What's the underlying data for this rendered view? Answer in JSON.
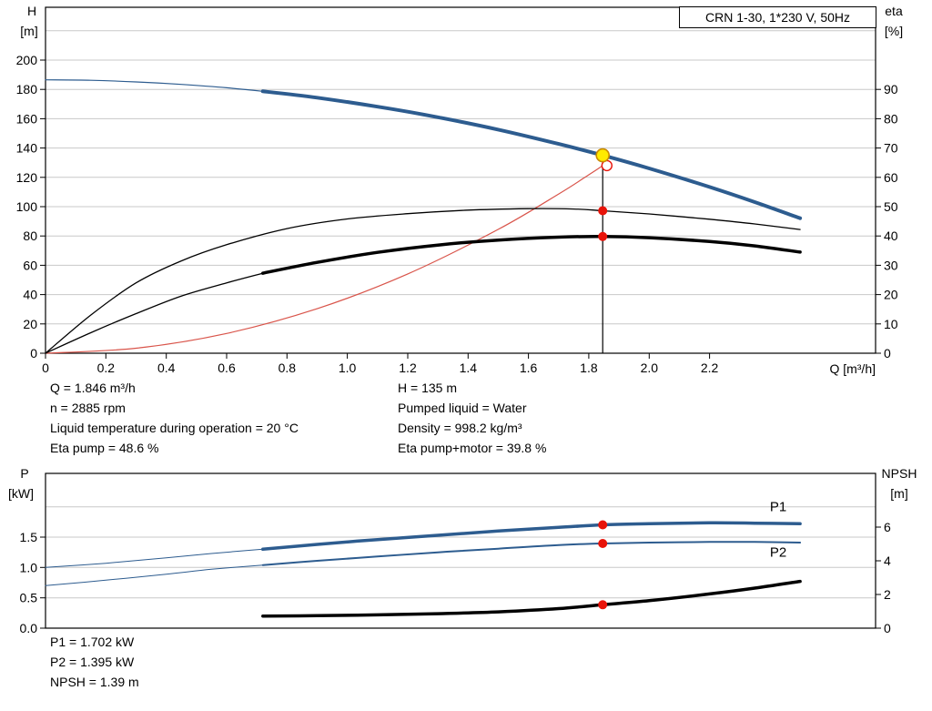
{
  "title_box": "CRN 1-30, 1*230 V, 50Hz",
  "colors": {
    "curve_blue": "#2d5c8f",
    "curve_black": "#000000",
    "curve_red": "#d9544a",
    "label_blue": "#2d5c8f",
    "marker_red": "#e81309",
    "marker_yellow_fill": "#ffeb00",
    "marker_yellow_ring": "#c98a00",
    "grid": "#c8c8c8",
    "axis": "#000000"
  },
  "readouts": {
    "left_column": [
      "Q = 1.846 m³/h",
      "n = 2885 rpm",
      "Liquid temperature during operation = 20 °C",
      "Eta pump = 48.6 %"
    ],
    "right_column": [
      "H = 135 m",
      "Pumped liquid = Water",
      "Density = 998.2 kg/m³",
      "Eta pump+motor = 39.8 %"
    ],
    "power_block": [
      "P1 = 1.702 kW",
      "P2 = 1.395 kW",
      "NPSH = 1.39 m"
    ]
  },
  "chart_data": [
    {
      "type": "line",
      "title": "CRN 1-30, 1*230 V, 50Hz",
      "x_axis": {
        "label": "Q [m³/h]",
        "min": 0,
        "max": 2.75,
        "tick_values": [
          0,
          0.2,
          0.4,
          0.6,
          0.8,
          1.0,
          1.2,
          1.4,
          1.6,
          1.8,
          2.0,
          2.2
        ],
        "tick_labels": [
          "0",
          "0.2",
          "0.4",
          "0.6",
          "0.8",
          "1.0",
          "1.2",
          "1.4",
          "1.6",
          "1.8",
          "2.0",
          "2.2"
        ]
      },
      "y_left": {
        "name": "H",
        "unit": "[m]",
        "min": 0,
        "max": 236,
        "tick_values": [
          0,
          20,
          40,
          60,
          80,
          100,
          120,
          140,
          160,
          180,
          200
        ],
        "tick_labels": [
          "0",
          "20",
          "40",
          "60",
          "80",
          "100",
          "120",
          "140",
          "160",
          "180",
          "200"
        ]
      },
      "y_right": {
        "name": "eta",
        "unit": "[%]",
        "min": 0,
        "max": 118,
        "tick_values": [
          0,
          10,
          20,
          30,
          40,
          50,
          60,
          70,
          80,
          90
        ],
        "tick_labels": [
          "0",
          "10",
          "20",
          "30",
          "40",
          "50",
          "60",
          "70",
          "80",
          "90"
        ]
      },
      "grid_values": [
        20,
        40,
        60,
        80,
        100,
        120,
        140,
        160,
        180,
        200,
        220
      ],
      "series": [
        {
          "name": "head-curve-lead",
          "axis": "left",
          "color": "curve_blue",
          "width": 1.2,
          "points": [
            [
              0,
              186.5
            ],
            [
              0.15,
              186.2
            ],
            [
              0.3,
              185.1
            ],
            [
              0.45,
              183.4
            ],
            [
              0.6,
              181.1
            ],
            [
              0.72,
              178.7
            ]
          ]
        },
        {
          "name": "head-curve",
          "axis": "left",
          "color": "curve_blue",
          "width": 4,
          "points": [
            [
              0.72,
              178.7
            ],
            [
              0.9,
              174.3
            ],
            [
              1.1,
              168.2
            ],
            [
              1.3,
              161.0
            ],
            [
              1.5,
              152.5
            ],
            [
              1.7,
              142.8
            ],
            [
              1.846,
              135.0
            ],
            [
              2.0,
              126.1
            ],
            [
              2.2,
              113.4
            ],
            [
              2.35,
              103.1
            ],
            [
              2.5,
              92.1
            ]
          ]
        },
        {
          "name": "system-curve",
          "axis": "left",
          "color": "curve_red",
          "width": 1.2,
          "points": [
            [
              0,
              0
            ],
            [
              0.3,
              3.4
            ],
            [
              0.6,
              13.5
            ],
            [
              0.9,
              30.4
            ],
            [
              1.2,
              54.1
            ],
            [
              1.5,
              84.5
            ],
            [
              1.7,
              108.6
            ],
            [
              1.8,
              121.7
            ],
            [
              1.846,
              128.0
            ]
          ]
        },
        {
          "name": "eta-pump-curve",
          "axis": "right",
          "color": "curve_black",
          "width": 1.3,
          "points": [
            [
              0,
              0
            ],
            [
              0.15,
              13
            ],
            [
              0.3,
              24
            ],
            [
              0.45,
              31.5
            ],
            [
              0.6,
              37
            ],
            [
              0.8,
              42.5
            ],
            [
              1.0,
              45.8
            ],
            [
              1.2,
              47.6
            ],
            [
              1.4,
              48.8
            ],
            [
              1.6,
              49.3
            ],
            [
              1.75,
              49.2
            ],
            [
              1.846,
              48.6
            ],
            [
              2.0,
              47.5
            ],
            [
              2.2,
              45.7
            ],
            [
              2.35,
              44.1
            ],
            [
              2.5,
              42.2
            ]
          ]
        },
        {
          "name": "eta-pump-motor-lead",
          "axis": "right",
          "color": "curve_black",
          "width": 1.3,
          "points": [
            [
              0,
              0
            ],
            [
              0.15,
              7
            ],
            [
              0.3,
              13.5
            ],
            [
              0.45,
              19.5
            ],
            [
              0.6,
              24
            ],
            [
              0.72,
              27.3
            ]
          ]
        },
        {
          "name": "eta-pump-motor-curve",
          "axis": "right",
          "color": "curve_black",
          "width": 3.5,
          "points": [
            [
              0.72,
              27.3
            ],
            [
              0.9,
              31
            ],
            [
              1.1,
              34.4
            ],
            [
              1.3,
              36.9
            ],
            [
              1.5,
              38.6
            ],
            [
              1.7,
              39.6
            ],
            [
              1.846,
              39.8
            ],
            [
              2.0,
              39.4
            ],
            [
              2.2,
              38.1
            ],
            [
              2.35,
              36.6
            ],
            [
              2.5,
              34.5
            ]
          ]
        }
      ],
      "duty_line": {
        "q": 1.846,
        "axis": "left",
        "v_from": 0,
        "v_to": 135
      },
      "curve_labels": [],
      "markers": [
        {
          "q": 1.86,
          "v": 128,
          "axis": "left",
          "kind": "red-open"
        },
        {
          "q": 1.846,
          "v": 48.6,
          "axis": "right",
          "kind": "red-dot"
        },
        {
          "q": 1.846,
          "v": 39.8,
          "axis": "right",
          "kind": "red-dot"
        },
        {
          "q": 1.846,
          "v": 135,
          "axis": "left",
          "kind": "yellow-dot"
        }
      ]
    },
    {
      "type": "line",
      "title": "",
      "x_axis": {
        "label": "",
        "min": 0,
        "max": 2.75,
        "tick_values": [],
        "tick_labels": []
      },
      "y_left": {
        "name": "P",
        "unit": "[kW]",
        "min": 0,
        "max": 2.55,
        "tick_values": [
          0,
          0.5,
          1.0,
          1.5
        ],
        "tick_labels": [
          "0.0",
          "0.5",
          "1.0",
          "1.5"
        ]
      },
      "y_right": {
        "name": "NPSH",
        "unit": "[m]",
        "min": 0,
        "max": 9.19,
        "tick_values": [
          0,
          2,
          4,
          6
        ],
        "tick_labels": [
          "0",
          "2",
          "4",
          "6"
        ]
      },
      "grid_values": [
        0.5,
        1.0,
        1.5,
        2.0
      ],
      "series": [
        {
          "name": "p1-curve-lead",
          "axis": "left",
          "color": "curve_blue",
          "width": 1,
          "points": [
            [
              0,
              1.0
            ],
            [
              0.2,
              1.07
            ],
            [
              0.4,
              1.16
            ],
            [
              0.55,
              1.23
            ],
            [
              0.72,
              1.3
            ]
          ]
        },
        {
          "name": "p1-curve",
          "axis": "left",
          "color": "curve_blue",
          "width": 3.5,
          "points": [
            [
              0.72,
              1.3
            ],
            [
              0.9,
              1.38
            ],
            [
              1.1,
              1.46
            ],
            [
              1.3,
              1.53
            ],
            [
              1.5,
              1.6
            ],
            [
              1.7,
              1.66
            ],
            [
              1.846,
              1.702
            ],
            [
              2.0,
              1.72
            ],
            [
              2.2,
              1.735
            ],
            [
              2.35,
              1.73
            ],
            [
              2.5,
              1.72
            ]
          ]
        },
        {
          "name": "p2-curve-lead",
          "axis": "left",
          "color": "curve_blue",
          "width": 1,
          "points": [
            [
              0,
              0.7
            ],
            [
              0.2,
              0.79
            ],
            [
              0.4,
              0.89
            ],
            [
              0.55,
              0.97
            ],
            [
              0.72,
              1.04
            ]
          ]
        },
        {
          "name": "p2-curve",
          "axis": "left",
          "color": "curve_blue",
          "width": 2,
          "points": [
            [
              0.72,
              1.04
            ],
            [
              0.9,
              1.11
            ],
            [
              1.1,
              1.18
            ],
            [
              1.3,
              1.25
            ],
            [
              1.5,
              1.31
            ],
            [
              1.7,
              1.37
            ],
            [
              1.846,
              1.395
            ],
            [
              2.0,
              1.41
            ],
            [
              2.2,
              1.42
            ],
            [
              2.35,
              1.42
            ],
            [
              2.5,
              1.41
            ]
          ]
        },
        {
          "name": "npsh-curve",
          "axis": "right",
          "color": "curve_black",
          "width": 3.5,
          "points": [
            [
              0.72,
              0.72
            ],
            [
              0.9,
              0.74
            ],
            [
              1.1,
              0.79
            ],
            [
              1.3,
              0.86
            ],
            [
              1.5,
              0.97
            ],
            [
              1.7,
              1.16
            ],
            [
              1.846,
              1.39
            ],
            [
              2.0,
              1.63
            ],
            [
              2.2,
              2.03
            ],
            [
              2.35,
              2.38
            ],
            [
              2.5,
              2.78
            ]
          ]
        }
      ],
      "duty_line": null,
      "curve_labels": [
        {
          "text": "P1",
          "q": 2.4,
          "v": 1.93,
          "axis": "left",
          "color": "label_blue"
        },
        {
          "text": "P2",
          "q": 2.4,
          "v": 1.18,
          "axis": "left",
          "color": "label_blue"
        }
      ],
      "markers": [
        {
          "q": 1.846,
          "v": 1.702,
          "axis": "left",
          "kind": "red-dot"
        },
        {
          "q": 1.846,
          "v": 1.395,
          "axis": "left",
          "kind": "red-dot"
        },
        {
          "q": 1.846,
          "v": 1.39,
          "axis": "right",
          "kind": "red-dot"
        }
      ]
    }
  ]
}
